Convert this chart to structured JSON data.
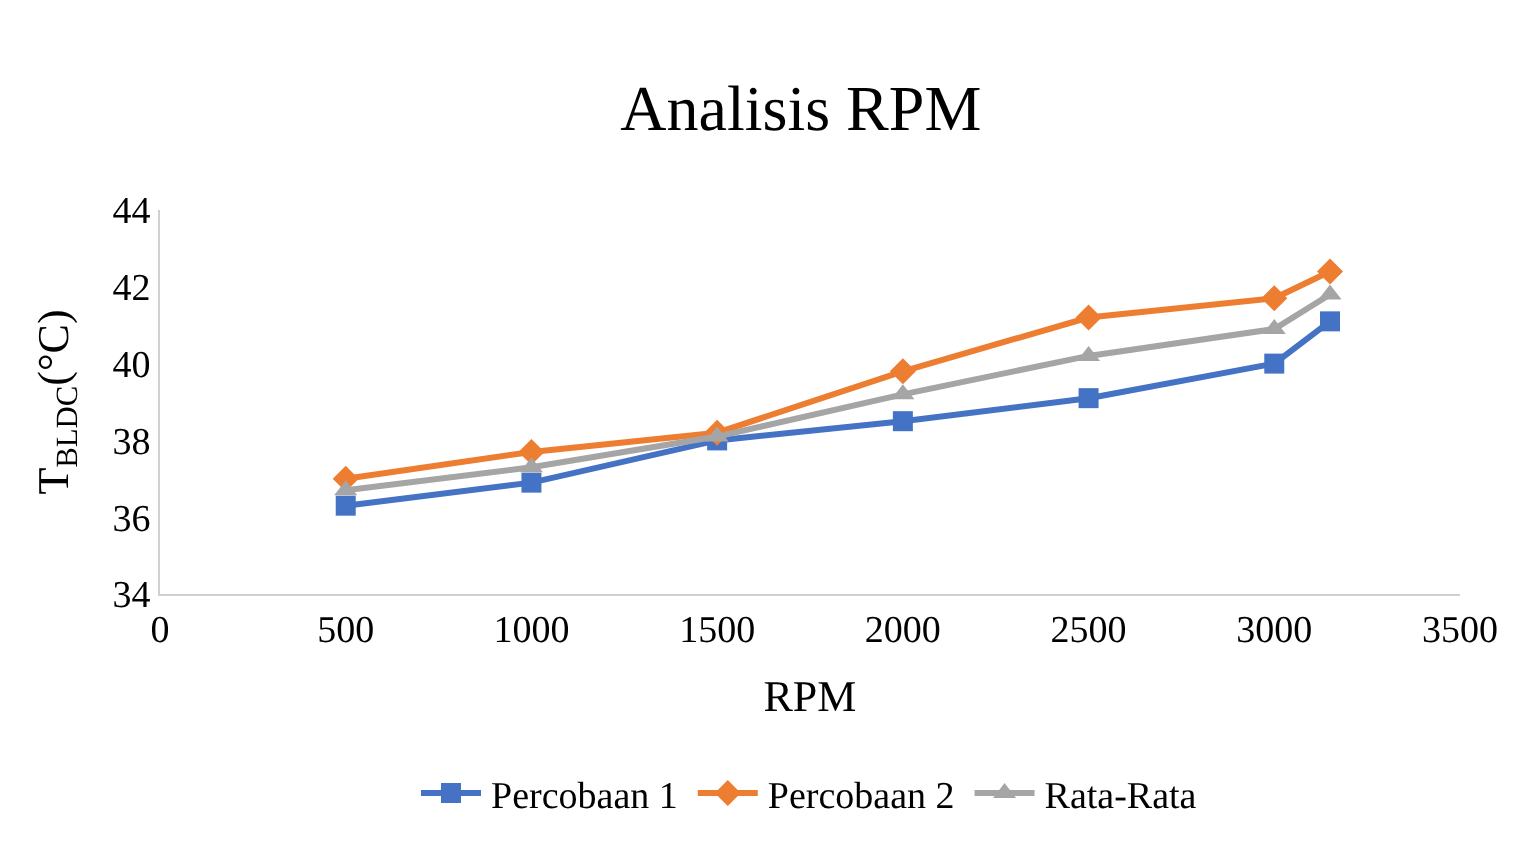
{
  "chart_data": {
    "type": "line",
    "title": "Analisis RPM",
    "xlabel": "RPM",
    "ylabel": "T$_{BLDC}$(°C)",
    "x": [
      500,
      1000,
      1500,
      2000,
      2500,
      3000,
      3150
    ],
    "series": [
      {
        "name": "Percobaan 1",
        "color": "#4472c4",
        "marker": "square",
        "values": [
          36.3,
          36.9,
          38.0,
          38.5,
          39.1,
          40.0,
          41.1
        ]
      },
      {
        "name": "Percobaan 2",
        "color": "#ed7d31",
        "marker": "diamond",
        "values": [
          37.0,
          37.7,
          38.2,
          39.8,
          41.2,
          41.7,
          42.4
        ]
      },
      {
        "name": "Rata-Rata",
        "color": "#a5a5a5",
        "marker": "triangle",
        "values": [
          36.7,
          37.3,
          38.1,
          39.2,
          40.2,
          40.9,
          41.8
        ]
      }
    ],
    "xlim": [
      0,
      3500
    ],
    "xticks": [
      0,
      500,
      1000,
      1500,
      2000,
      2500,
      3000,
      3500
    ],
    "ylim": [
      34,
      44
    ],
    "yticks": [
      34,
      36,
      38,
      40,
      42,
      44
    ],
    "legend": "bottom",
    "line_style": "solid"
  }
}
